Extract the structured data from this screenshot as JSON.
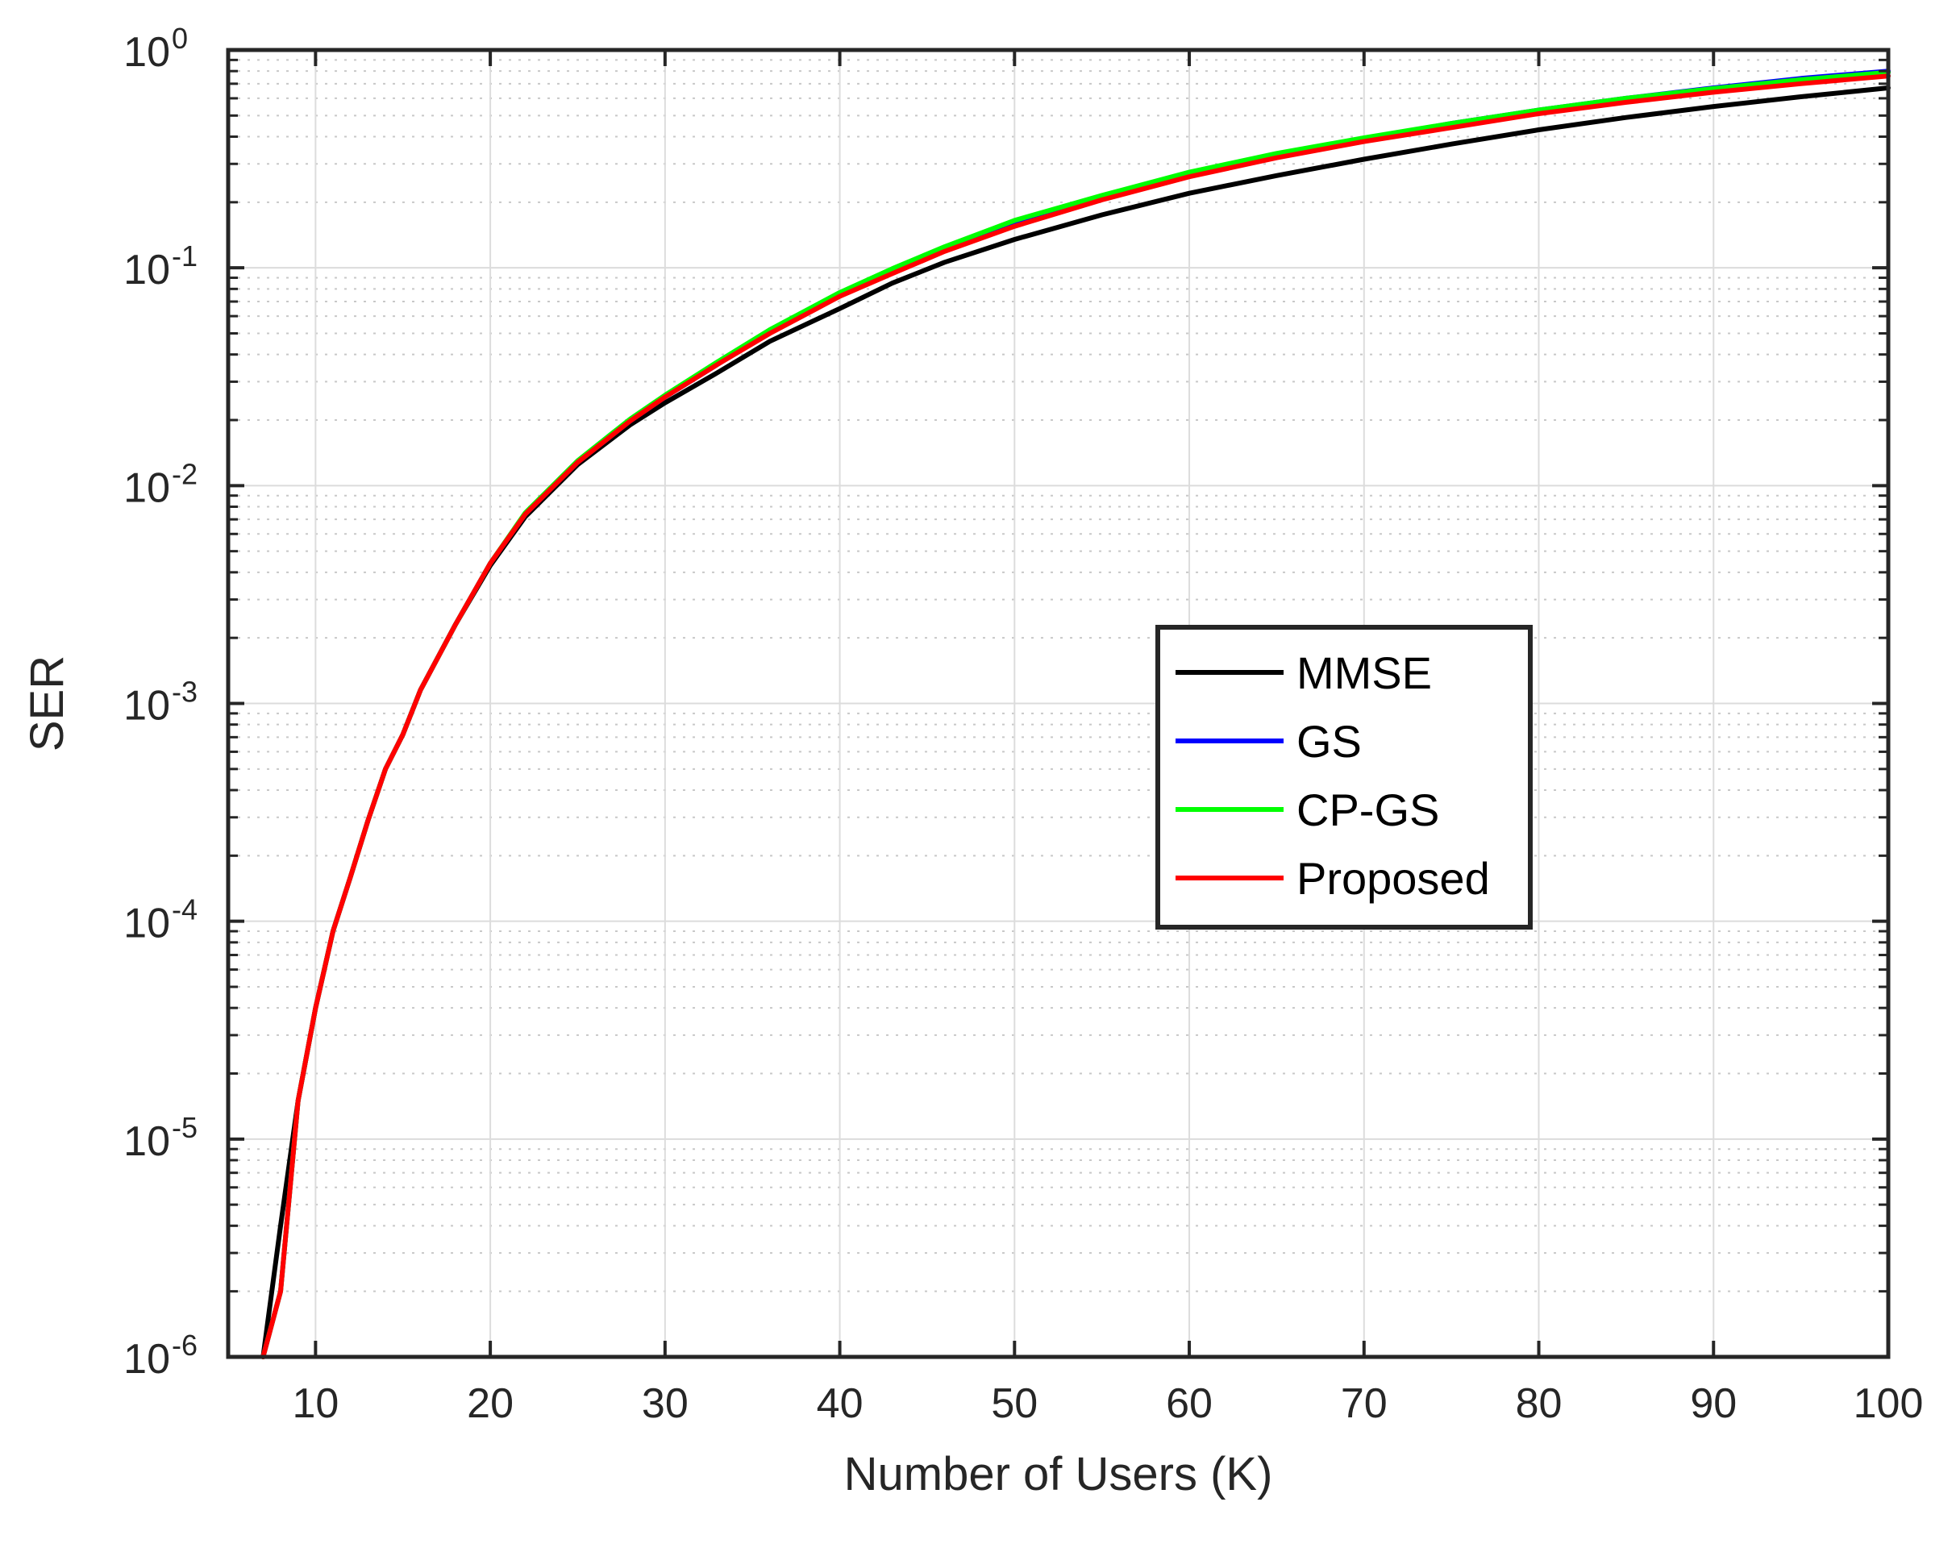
{
  "chart_data": {
    "type": "line",
    "title": "",
    "xlabel": "Number of Users (K)",
    "ylabel": "SER",
    "xlim": [
      5,
      100
    ],
    "ylim": [
      1e-06,
      1
    ],
    "yscale": "log",
    "grid": true,
    "minor_grid": true,
    "legend_position": "center-right",
    "x_ticks": [
      10,
      20,
      30,
      40,
      50,
      60,
      70,
      80,
      90,
      100
    ],
    "x_tick_labels": [
      "10",
      "20",
      "30",
      "40",
      "50",
      "60",
      "70",
      "80",
      "90",
      "100"
    ],
    "y_ticks": [
      1e-06,
      1e-05,
      0.0001,
      0.001,
      0.01,
      0.1,
      1
    ],
    "y_tick_labels": [
      {
        "base": "10",
        "exp": "-6"
      },
      {
        "base": "10",
        "exp": "-5"
      },
      {
        "base": "10",
        "exp": "-4"
      },
      {
        "base": "10",
        "exp": "-3"
      },
      {
        "base": "10",
        "exp": "-2"
      },
      {
        "base": "10",
        "exp": "-1"
      },
      {
        "base": "10",
        "exp": "0"
      }
    ],
    "series": [
      {
        "name": "MMSE",
        "color": "#000000",
        "x": [
          7,
          8,
          9,
          10,
          11,
          12,
          13,
          14,
          15,
          16,
          18,
          20,
          22,
          25,
          28,
          30,
          33,
          36,
          40,
          43,
          46,
          50,
          55,
          60,
          65,
          70,
          75,
          80,
          85,
          90,
          95,
          100
        ],
        "y": [
          1e-06,
          4e-06,
          1.5e-05,
          4e-05,
          9e-05,
          0.00016,
          0.00029,
          0.0005,
          0.00072,
          0.00115,
          0.0023,
          0.0043,
          0.0072,
          0.0125,
          0.019,
          0.024,
          0.033,
          0.046,
          0.065,
          0.085,
          0.106,
          0.135,
          0.175,
          0.22,
          0.265,
          0.315,
          0.37,
          0.43,
          0.49,
          0.55,
          0.61,
          0.67
        ]
      },
      {
        "name": "GS",
        "color": "#0000ff",
        "x": [
          7,
          8,
          9,
          10,
          11,
          12,
          13,
          14,
          15,
          16,
          18,
          20,
          22,
          25,
          28,
          30,
          33,
          36,
          40,
          43,
          46,
          50,
          55,
          60,
          65,
          70,
          75,
          80,
          85,
          90,
          95,
          100
        ],
        "y": [
          1e-06,
          2e-06,
          1.5e-05,
          4e-05,
          9e-05,
          0.00016,
          0.00029,
          0.0005,
          0.00072,
          0.00115,
          0.0023,
          0.0044,
          0.0074,
          0.0128,
          0.0198,
          0.0255,
          0.036,
          0.051,
          0.075,
          0.096,
          0.122,
          0.16,
          0.21,
          0.27,
          0.33,
          0.39,
          0.46,
          0.53,
          0.6,
          0.67,
          0.74,
          0.8
        ]
      },
      {
        "name": "CP-GS",
        "color": "#00ff00",
        "x": [
          7,
          8,
          9,
          10,
          11,
          12,
          13,
          14,
          15,
          16,
          18,
          20,
          22,
          25,
          28,
          30,
          33,
          36,
          40,
          43,
          46,
          50,
          55,
          60,
          65,
          70,
          75,
          80,
          85,
          90,
          95,
          100
        ],
        "y": [
          1e-06,
          2e-06,
          1.5e-05,
          4e-05,
          9e-05,
          0.00016,
          0.00029,
          0.0005,
          0.00072,
          0.00115,
          0.0023,
          0.0044,
          0.0075,
          0.013,
          0.0202,
          0.026,
          0.037,
          0.052,
          0.077,
          0.099,
          0.125,
          0.165,
          0.215,
          0.275,
          0.335,
          0.395,
          0.46,
          0.53,
          0.6,
          0.665,
          0.73,
          0.79
        ]
      },
      {
        "name": "Proposed",
        "color": "#ff0000",
        "x": [
          7,
          8,
          9,
          10,
          11,
          12,
          13,
          14,
          15,
          16,
          18,
          20,
          22,
          25,
          28,
          30,
          33,
          36,
          40,
          43,
          46,
          50,
          55,
          60,
          65,
          70,
          75,
          80,
          85,
          90,
          95,
          100
        ],
        "y": [
          1e-06,
          2e-06,
          1.5e-05,
          4e-05,
          9e-05,
          0.00016,
          0.00029,
          0.0005,
          0.00072,
          0.00115,
          0.0023,
          0.0044,
          0.0074,
          0.0128,
          0.0198,
          0.0255,
          0.036,
          0.05,
          0.074,
          0.094,
          0.119,
          0.155,
          0.205,
          0.262,
          0.32,
          0.38,
          0.44,
          0.51,
          0.575,
          0.64,
          0.7,
          0.76
        ]
      }
    ]
  }
}
